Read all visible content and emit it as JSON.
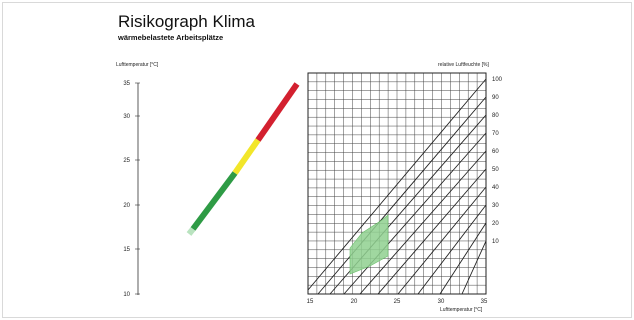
{
  "header": {
    "title": "Risikograph Klima",
    "subtitle": "wärmebelastete Arbeitsplätze"
  },
  "left_scale": {
    "axis_label": "Lufttemperatur [°C]",
    "ticks": [
      "35",
      "30",
      "25",
      "20",
      "15",
      "10"
    ],
    "segments": [
      {
        "name": "green",
        "color": "#2e9b45"
      },
      {
        "name": "yellow",
        "color": "#f2e62a"
      },
      {
        "name": "red",
        "color": "#d3202f"
      }
    ]
  },
  "grid": {
    "right_axis_label": "relative Luftfeuchte [%]",
    "humidity_ticks": [
      "100",
      "90",
      "80",
      "70",
      "60",
      "50",
      "40",
      "30",
      "20",
      "10"
    ],
    "x_ticks": [
      "15",
      "20",
      "25",
      "30",
      "35"
    ],
    "x_axis_label": "Lufttemperatur [°C]",
    "zone_color": "#8fd08f"
  }
}
